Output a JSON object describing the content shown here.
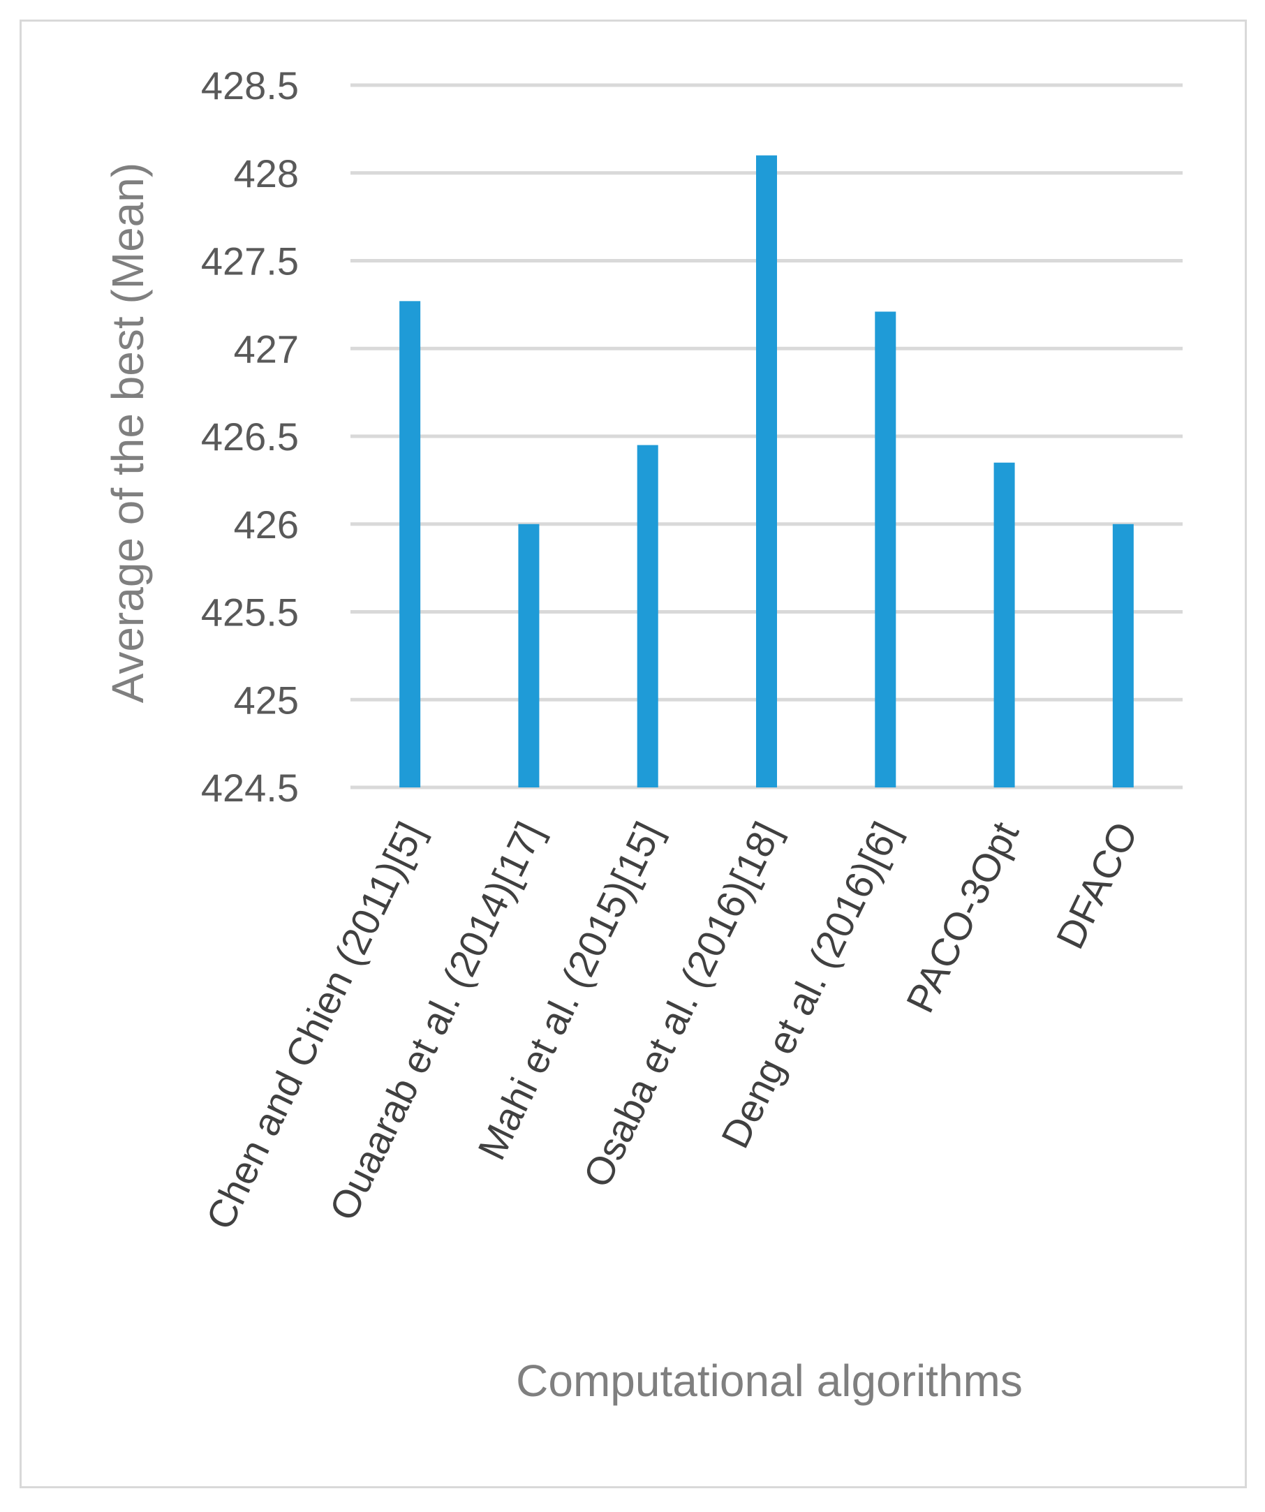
{
  "chart_data": {
    "type": "bar",
    "title": "",
    "xlabel": "Computational algorithms",
    "ylabel": "Average of the best  (Mean)",
    "categories": [
      "Chen and Chien (2011)[5]",
      "Ouaarab et al. (2014)[17]",
      "Mahi et al. (2015)[15]",
      "Osaba et al. (2016)[18]",
      "Deng et al. (2016)[6]",
      "PACO-3Opt",
      "DFACO"
    ],
    "values": [
      427.27,
      426.0,
      426.45,
      428.1,
      427.21,
      426.35,
      426.0
    ],
    "ylim": [
      424.5,
      428.5
    ],
    "yticks": [
      424.5,
      425,
      425.5,
      426,
      426.5,
      427,
      427.5,
      428,
      428.5
    ],
    "ytick_labels": [
      "424.5",
      "425",
      "425.5",
      "426",
      "426.5",
      "427",
      "427.5",
      "428",
      "428.5"
    ],
    "grid": true,
    "legend": "none",
    "colors": {
      "bar": "#1f9bd7",
      "grid": "#d9d9d9",
      "frame": "#d9d9d9",
      "tick_text": "#595959",
      "category_text": "#404040",
      "axis_title": "#7f7f7f"
    }
  }
}
